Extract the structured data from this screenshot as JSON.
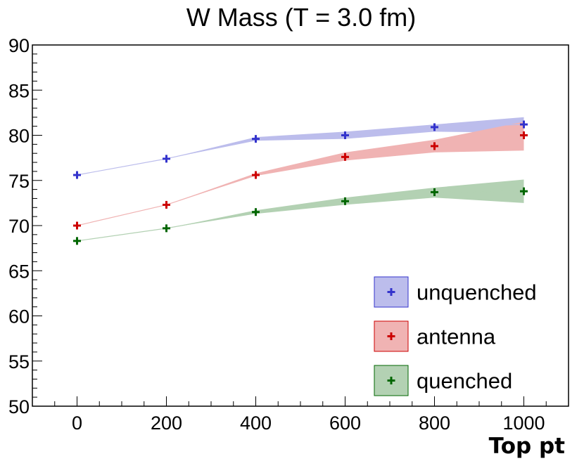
{
  "chart_data": {
    "type": "line",
    "title": "W Mass (T = 3.0 fm)",
    "xlabel": "Top pt",
    "ylabel": "",
    "xlim": [
      -100,
      1100
    ],
    "ylim": [
      50,
      90
    ],
    "x": [
      0,
      200,
      400,
      600,
      800,
      1000
    ],
    "x_ticks": [
      0,
      200,
      400,
      600,
      800,
      1000
    ],
    "x_tick_labels": [
      "0",
      "200",
      "400",
      "600",
      "800",
      "1000"
    ],
    "y_ticks": [
      50,
      55,
      60,
      65,
      70,
      75,
      80,
      85,
      90
    ],
    "y_tick_labels": [
      "50",
      "55",
      "60",
      "65",
      "70",
      "75",
      "80",
      "85",
      "90"
    ],
    "grid": false,
    "legend_position": "bottom-right",
    "series": [
      {
        "name": "unquenched",
        "color": "#3333cc",
        "band_color": "#bcbdec",
        "values": [
          75.6,
          77.4,
          79.6,
          80.0,
          80.9,
          81.2
        ],
        "band_low": [
          75.6,
          77.4,
          79.4,
          79.6,
          80.4,
          80.3
        ],
        "band_high": [
          75.6,
          77.4,
          79.8,
          80.4,
          81.2,
          82.0
        ]
      },
      {
        "name": "antenna",
        "color": "#cc0000",
        "band_color": "#f0b3b3",
        "values": [
          70.0,
          72.3,
          75.6,
          77.6,
          78.8,
          80.0
        ],
        "band_low": [
          70.0,
          72.3,
          75.5,
          77.2,
          78.1,
          78.3
        ],
        "band_high": [
          70.0,
          72.3,
          75.8,
          78.1,
          79.5,
          81.5
        ]
      },
      {
        "name": "quenched",
        "color": "#006600",
        "band_color": "#b3d1b3",
        "values": [
          68.3,
          69.7,
          71.5,
          72.7,
          73.7,
          73.8
        ],
        "band_low": [
          68.3,
          69.7,
          71.3,
          72.3,
          73.1,
          72.5
        ],
        "band_high": [
          68.3,
          69.7,
          71.7,
          73.1,
          74.2,
          75.1
        ]
      }
    ]
  }
}
